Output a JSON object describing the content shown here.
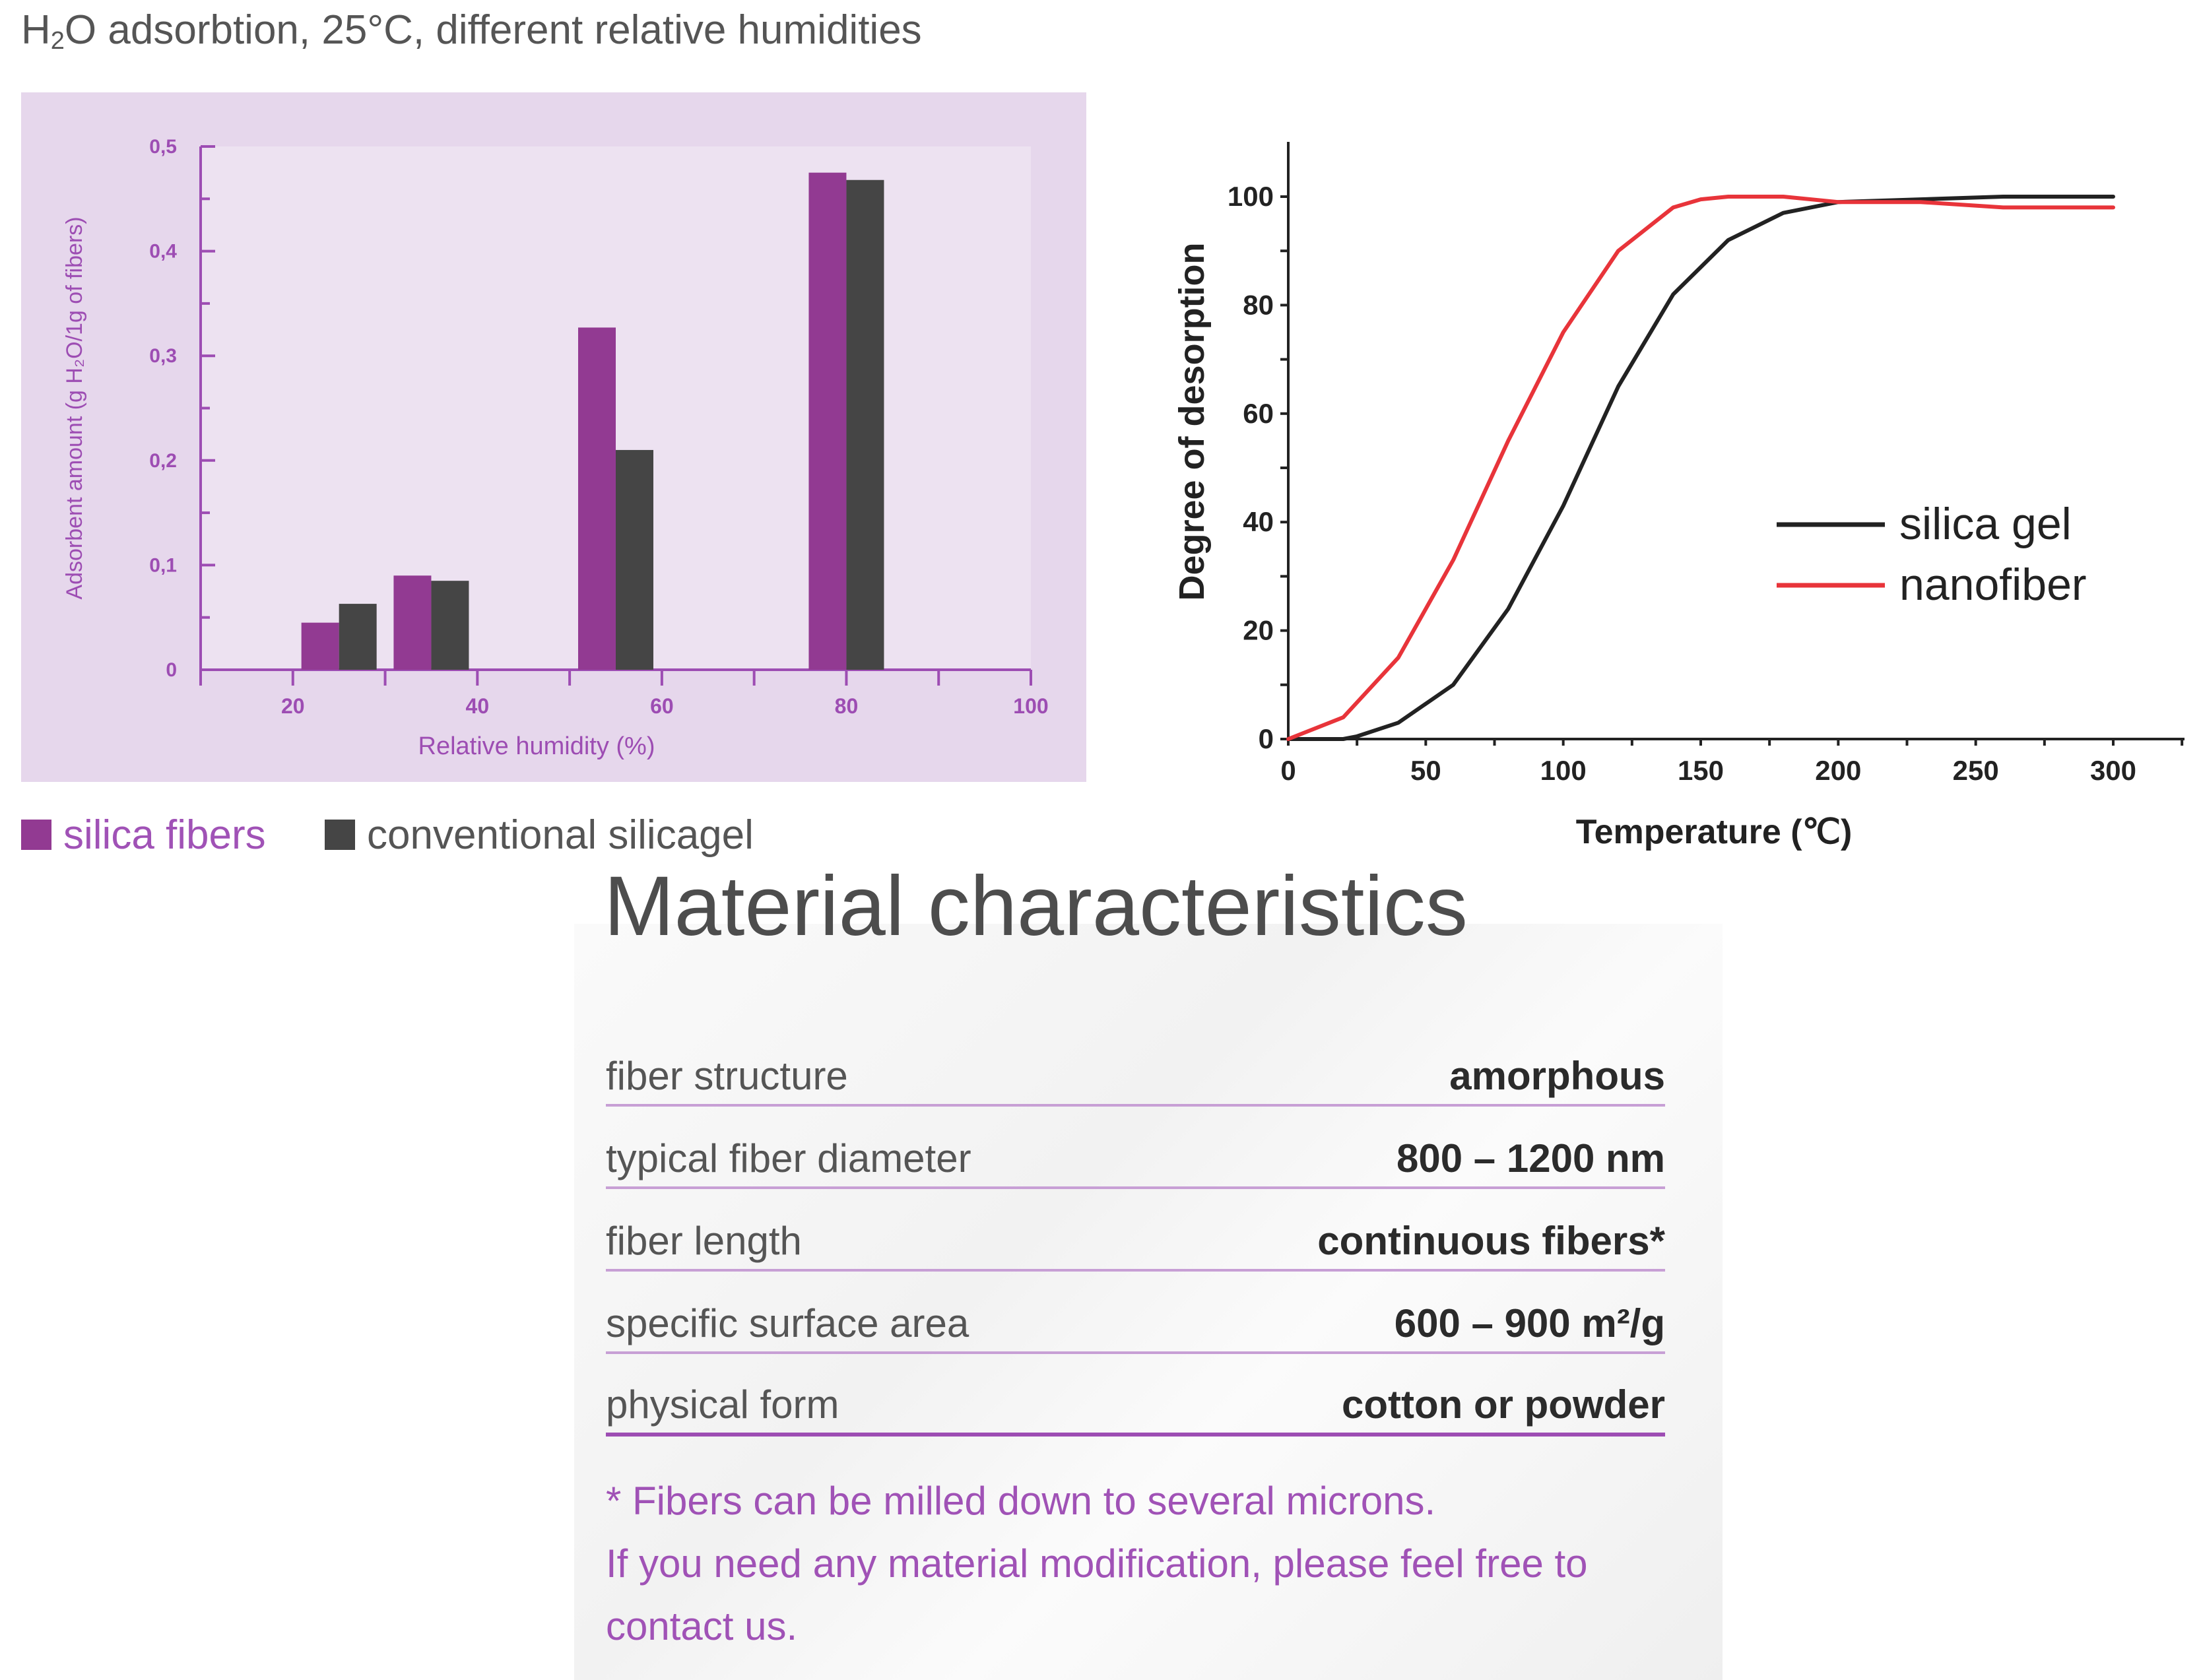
{
  "chart_data": [
    {
      "type": "bar",
      "title": "H₂O adsorbtion, 25°C, different relative humidities",
      "xlabel": "Relative humidity (%)",
      "ylabel": "Adsorbent amount (g H₂O/1g of fibers)",
      "xlim": [
        10,
        100
      ],
      "ylim": [
        0,
        0.5
      ],
      "x_ticks": [
        "20",
        "40",
        "60",
        "80",
        "100"
      ],
      "y_ticks": [
        "0",
        "0,1",
        "0,2",
        "0,3",
        "0,4",
        "0,5"
      ],
      "categories": [
        25,
        35,
        55,
        80
      ],
      "series": [
        {
          "name": "silica fibers",
          "color": "#923a92",
          "values": [
            0.045,
            0.09,
            0.327,
            0.475
          ]
        },
        {
          "name": "conventional silicagel",
          "color": "#454545",
          "values": [
            0.063,
            0.085,
            0.21,
            0.468
          ]
        }
      ],
      "grid": false,
      "legend_position": "bottom-left"
    },
    {
      "type": "line",
      "xlabel": "Temperature (℃)",
      "ylabel": "Degree of desorption",
      "xlim": [
        0,
        325
      ],
      "ylim": [
        0,
        100
      ],
      "x_ticks": [
        "0",
        "50",
        "100",
        "150",
        "200",
        "250",
        "300"
      ],
      "y_ticks": [
        "0",
        "20",
        "40",
        "60",
        "80",
        "100"
      ],
      "series": [
        {
          "name": "silica gel",
          "color": "#222222",
          "x": [
            0,
            20,
            25,
            40,
            60,
            80,
            100,
            110,
            120,
            140,
            160,
            180,
            200,
            230,
            260,
            300
          ],
          "y": [
            0,
            0,
            0.5,
            3,
            10,
            24,
            43,
            54,
            65,
            82,
            92,
            97,
            99,
            99.5,
            100,
            100
          ]
        },
        {
          "name": "nanofiber",
          "color": "#e8343a",
          "x": [
            0,
            20,
            40,
            60,
            80,
            100,
            120,
            140,
            150,
            160,
            180,
            200,
            230,
            260,
            300
          ],
          "y": [
            0,
            4,
            15,
            33,
            55,
            75,
            90,
            98,
            99.5,
            100,
            100,
            99,
            99,
            98,
            98
          ]
        }
      ],
      "grid": false,
      "legend_position": "right"
    }
  ],
  "material": {
    "title": "Material characteristics",
    "rows": [
      {
        "label": "fiber structure",
        "value": "amorphous"
      },
      {
        "label": "typical fiber diameter",
        "value": "800 – 1200 nm"
      },
      {
        "label": "fiber length",
        "value": "continuous fibers*"
      },
      {
        "label": "specific surface area",
        "value": "600 – 900 m²/g"
      },
      {
        "label": "physical form",
        "value": "cotton or powder"
      }
    ],
    "note1": "* Fibers can be milled down to several microns.",
    "note2": "If you need any material modification, please feel free to",
    "note3": "contact us."
  }
}
